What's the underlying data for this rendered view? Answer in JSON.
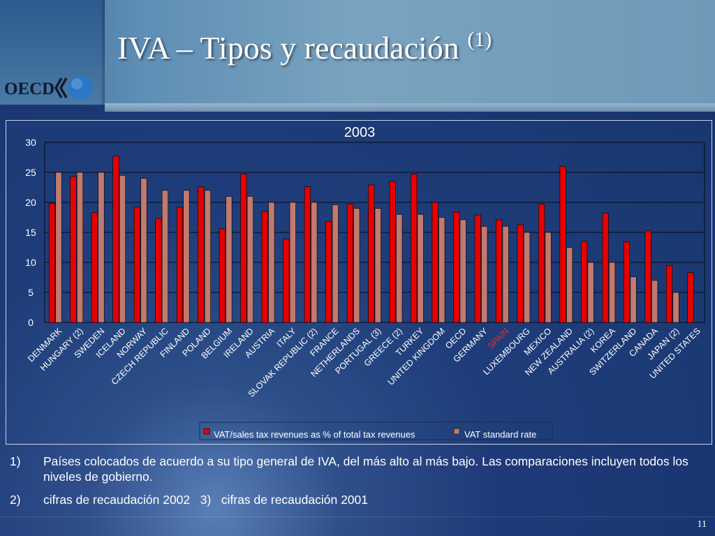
{
  "slide": {
    "title": "IVA – Tipos y recaudación",
    "title_superscript": "(1)",
    "logo_text": "OECD",
    "page_number": "11"
  },
  "footnotes": [
    {
      "number": "1)",
      "text": "Países colocados de acuerdo a su tipo general de IVA, del más alto al más bajo.  Las comparaciones incluyen todos los niveles de gobierno."
    },
    {
      "number": "2)",
      "text": "cifras de recaudación 2002   3)   cifras de recaudación 2001"
    }
  ],
  "colors": {
    "revenue_bar": "#e60000",
    "rate_bar": "#c07a70",
    "highlight_label": "#e03030",
    "text": "#ffffff"
  },
  "chart_data": {
    "type": "bar",
    "title": "2003",
    "categories": [
      "DENMARK",
      "HUNGARY (2)",
      "SWEDEN",
      "ICELAND",
      "NORWAY",
      "CZECH REPUBLIC",
      "FINLAND",
      "POLAND",
      "BELGIUM",
      "IRELAND",
      "AUSTRIA",
      "ITALY",
      "SLOVAK REPUBLIC (2)",
      "FRANCE",
      "NETHERLANDS",
      "PORTUGAL (3)",
      "GREECE (2)",
      "TURKEY",
      "UNITED KINGDOM",
      "OECD",
      "GERMANY",
      "SPAIN",
      "LUXEMBOURG",
      "MEXICO",
      "NEW ZEALAND",
      "AUSTRALIA (2)",
      "KOREA",
      "SWITZERLAND",
      "CANADA",
      "JAPAN (2)",
      "UNITED STATES"
    ],
    "highlight_category": "SPAIN",
    "series": [
      {
        "name": "VAT/sales tax revenues as % of total tax revenues",
        "color": "#e60000",
        "values": [
          19.8,
          24.3,
          18.3,
          27.7,
          19.2,
          17.3,
          19.2,
          22.6,
          15.6,
          24.7,
          18.5,
          13.9,
          22.6,
          16.8,
          19.7,
          22.9,
          23.5,
          24.7,
          20.0,
          18.4,
          17.9,
          17.1,
          16.3,
          19.7,
          26.0,
          13.5,
          18.2,
          13.4,
          15.3,
          9.5,
          8.3
        ]
      },
      {
        "name": "VAT standard rate",
        "color": "#c07a70",
        "values": [
          25,
          25,
          25,
          24.5,
          24,
          22,
          22,
          22,
          21,
          21,
          20,
          20,
          20,
          19.6,
          19,
          19,
          18,
          18,
          17.5,
          17.1,
          16,
          16,
          15,
          15,
          12.5,
          10,
          10,
          7.6,
          7,
          5,
          0
        ]
      }
    ],
    "ylim": [
      0,
      30
    ],
    "yticks": [
      0,
      5,
      10,
      15,
      20,
      25,
      30
    ],
    "grid": true,
    "legend_position": "bottom"
  }
}
